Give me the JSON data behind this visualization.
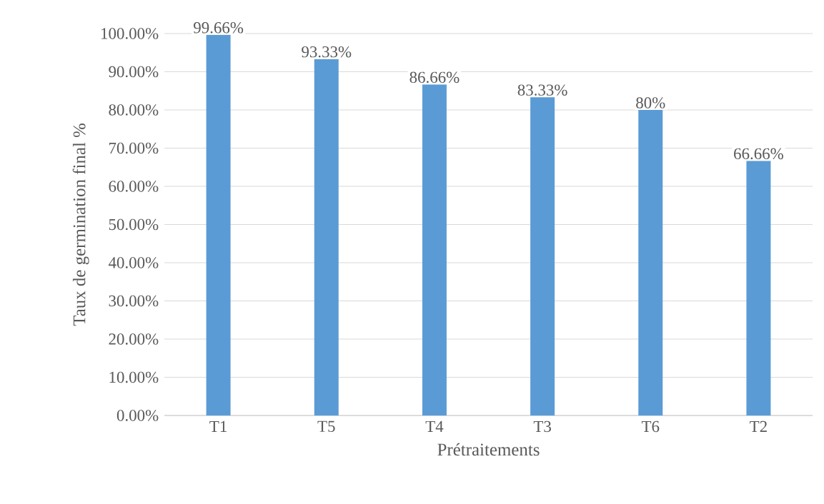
{
  "chart_data": {
    "type": "bar",
    "xlabel": "Prétraitements",
    "ylabel": "Taux de germination final %",
    "categories": [
      "T1",
      "T5",
      "T4",
      "T3",
      "T6",
      "T2"
    ],
    "values": [
      99.66,
      93.33,
      86.66,
      83.33,
      80,
      66.66
    ],
    "value_labels": [
      "99.66%",
      "93.33%",
      "86.66%",
      "83.33%",
      "80%",
      "66.66%"
    ],
    "color": "#5b9bd5",
    "ylim": [
      0,
      100
    ],
    "yticks": [
      {
        "value": 0,
        "label": "0.00%"
      },
      {
        "value": 10,
        "label": "10.00%"
      },
      {
        "value": 20,
        "label": "20.00%"
      },
      {
        "value": 30,
        "label": "30.00%"
      },
      {
        "value": 40,
        "label": "40.00%"
      },
      {
        "value": 50,
        "label": "50.00%"
      },
      {
        "value": 60,
        "label": "60.00%"
      },
      {
        "value": 70,
        "label": "70.00%"
      },
      {
        "value": 80,
        "label": "80.00%"
      },
      {
        "value": 90,
        "label": "90.00%"
      },
      {
        "value": 100,
        "label": "100.00%"
      }
    ],
    "grid": "y"
  }
}
